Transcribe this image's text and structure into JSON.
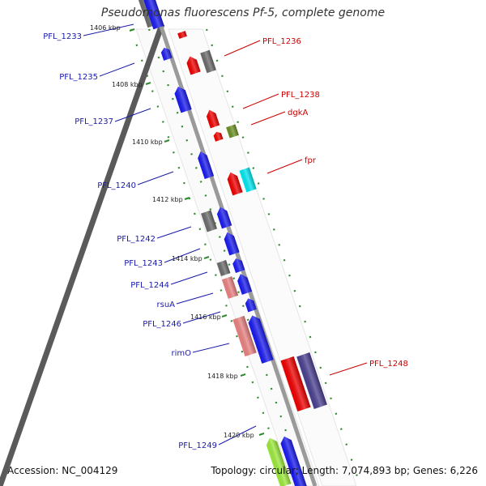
{
  "title": "Pseudomonas fluorescens Pf-5, complete genome",
  "footer": {
    "accession": "Accession: NC_004129",
    "summary": "Topology: circular; Length: 7,074,893 bp; Genes: 6,226"
  },
  "colors": {
    "forward_strand_label": "#cc0000",
    "reverse_strand_label": "#1a1aaa",
    "backbone": "#8c8c8c",
    "tick": "#2e8b2e"
  },
  "kbp_markers": [
    {
      "label": "1406 kbp"
    },
    {
      "label": "1408 kbp"
    },
    {
      "label": "1410 kbp"
    },
    {
      "label": "1412 kbp"
    },
    {
      "label": "1414 kbp"
    },
    {
      "label": "1416 kbp"
    },
    {
      "label": "1418 kbp"
    },
    {
      "label": "1420 kbp"
    }
  ],
  "genes_left": [
    {
      "label": "PFL_1233"
    },
    {
      "label": "PFL_1235"
    },
    {
      "label": "PFL_1237"
    },
    {
      "label": "PFL_1240"
    },
    {
      "label": "PFL_1242"
    },
    {
      "label": "PFL_1243"
    },
    {
      "label": "PFL_1244"
    },
    {
      "label": "rsuA"
    },
    {
      "label": "PFL_1246"
    },
    {
      "label": "rimO"
    },
    {
      "label": "PFL_1249"
    }
  ],
  "genes_right": [
    {
      "label": "PFL_1236"
    },
    {
      "label": "PFL_1238"
    },
    {
      "label": "dgkA"
    },
    {
      "label": "fpr"
    },
    {
      "label": "PFL_1248"
    }
  ],
  "feature_colors": {
    "red": "#ee0000",
    "blue": "#1a1aee",
    "gray": "#6b6b6b",
    "olive": "#6b8e23",
    "cyan": "#00e5ee",
    "pink": "#e88080",
    "purple": "#4a3f8f",
    "lime": "#9be83a"
  }
}
